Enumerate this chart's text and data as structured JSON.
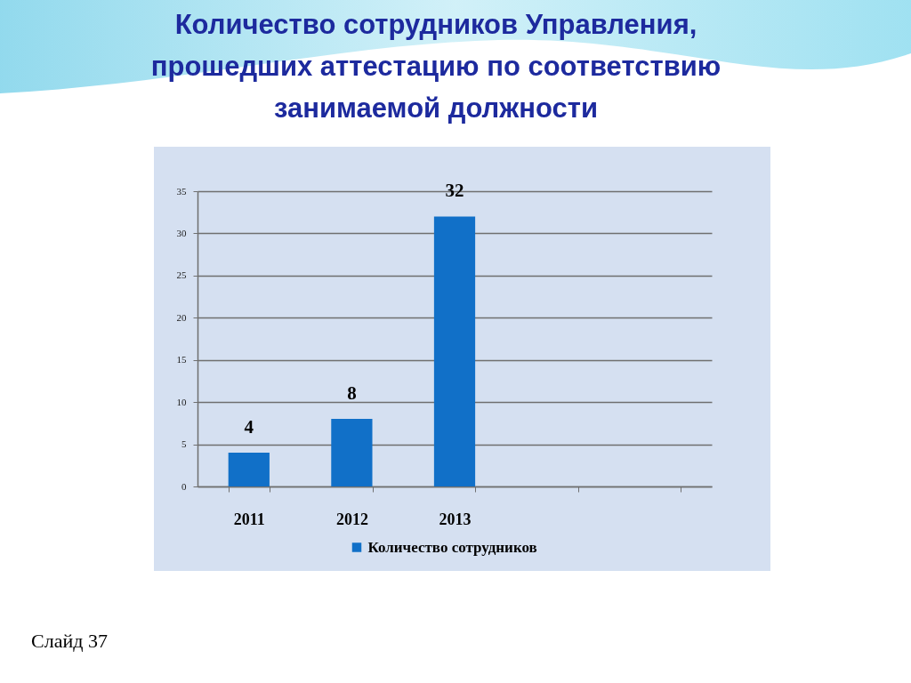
{
  "chart_data": {
    "type": "bar",
    "title": "Количество сотрудников Управления, прошедших аттестацию по соответствию занимаемой должности",
    "categories": [
      "2011",
      "2012",
      "2013",
      null,
      null
    ],
    "series": [
      {
        "name": "Количество сотрудников",
        "color": "#1170c8",
        "values": [
          4,
          8,
          32,
          null,
          null
        ]
      }
    ],
    "ylim": [
      0,
      35
    ],
    "yticks": [
      0,
      5,
      10,
      15,
      20,
      25,
      30,
      35
    ],
    "grid": "y",
    "legend": "bottom",
    "data_labels": true,
    "annotations": [
      "Слайд 37"
    ]
  }
}
